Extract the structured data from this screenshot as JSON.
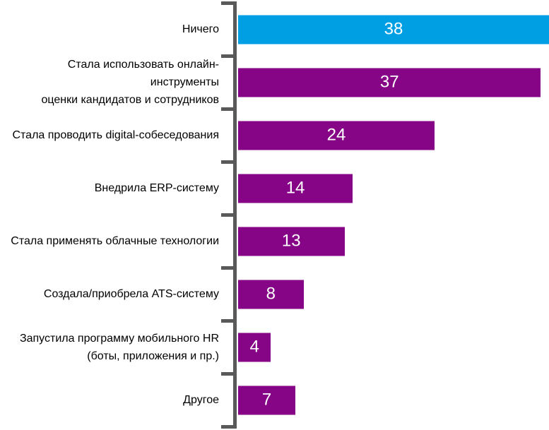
{
  "chart_data": {
    "type": "bar",
    "orientation": "horizontal",
    "title": "",
    "xlabel": "",
    "ylabel": "",
    "categories": [
      "Ничего",
      "Стала использовать онлайн-инструменты\nоценки кандидатов и сотрудников",
      "Стала проводить digital-собеседования",
      "Внедрила ERP-систему",
      "Стала применять облачные технологии",
      "Создала/приобрела ATS-систему",
      "Запустила программу мобильного HR\n(боты, приложения и пр.)",
      "Другое"
    ],
    "values": [
      38,
      37,
      24,
      14,
      13,
      8,
      4,
      7
    ],
    "xlim": [
      0,
      38
    ],
    "grid": false,
    "legend": false,
    "value_labels": "inside-center",
    "highlight_index": 0,
    "colors": {
      "highlight": "#009EE3",
      "default": "#850586",
      "axis": "#595959",
      "value_text": "#FFFFFF",
      "label_text": "#000000",
      "background": "#FFFFFF"
    }
  }
}
